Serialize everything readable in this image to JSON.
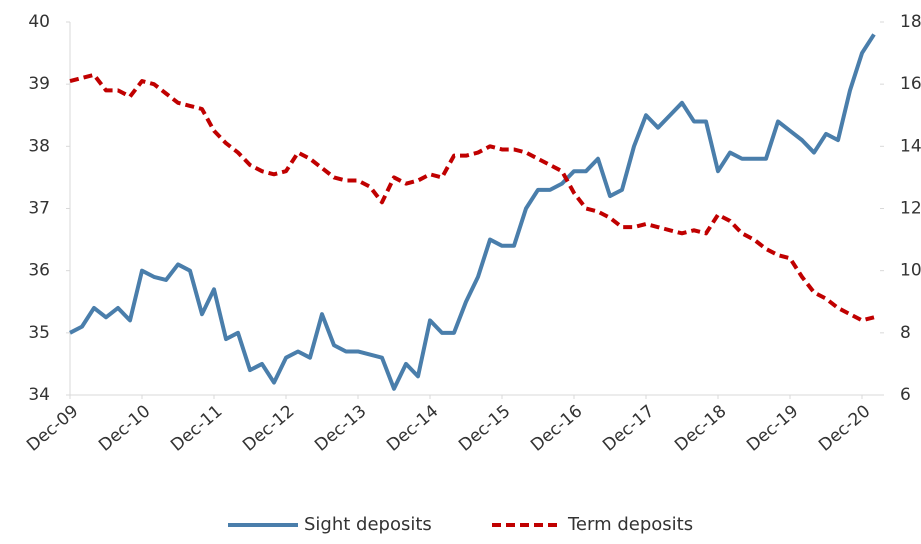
{
  "chart_data": {
    "type": "line",
    "categories": [
      "Dec-09",
      null,
      null,
      null,
      null,
      null,
      "Dec-10",
      null,
      null,
      null,
      null,
      null,
      "Dec-11",
      null,
      null,
      null,
      null,
      null,
      "Dec-12",
      null,
      null,
      null,
      null,
      null,
      "Dec-13",
      null,
      null,
      null,
      null,
      null,
      "Dec-14",
      null,
      null,
      null,
      null,
      null,
      "Dec-15",
      null,
      null,
      null,
      null,
      null,
      "Dec-16",
      null,
      null,
      null,
      null,
      null,
      "Dec-17",
      null,
      null,
      null,
      null,
      null,
      "Dec-18",
      null,
      null,
      null,
      null,
      null,
      "Dec-19",
      null,
      null,
      null,
      null,
      null,
      "Dec-20",
      null
    ],
    "series": [
      {
        "name": "Sight deposits",
        "color": "#4a7eab",
        "dash": false,
        "values": [
          35.0,
          35.1,
          35.4,
          35.25,
          35.4,
          35.2,
          36.0,
          35.9,
          35.85,
          36.1,
          36.0,
          35.3,
          35.7,
          34.9,
          35.0,
          34.4,
          34.5,
          34.2,
          34.6,
          34.7,
          34.6,
          35.3,
          34.8,
          34.7,
          34.7,
          34.65,
          34.6,
          34.1,
          34.5,
          34.3,
          35.2,
          35.0,
          35.0,
          35.5,
          35.9,
          36.5,
          36.4,
          36.4,
          37.0,
          37.3,
          37.3,
          37.4,
          37.6,
          37.6,
          37.8,
          37.2,
          37.3,
          38.0,
          38.5,
          38.3,
          38.5,
          38.7,
          38.4,
          38.4,
          37.6,
          37.9,
          37.8,
          37.8,
          37.8,
          38.4,
          38.25,
          38.1,
          37.9,
          38.2,
          38.1,
          38.9,
          39.5,
          39.8
        ]
      },
      {
        "name": "Term deposits",
        "color": "#c00000",
        "dash": true,
        "axis": "y2",
        "values": [
          16.1,
          16.2,
          16.3,
          15.8,
          15.8,
          15.6,
          16.1,
          16.0,
          15.7,
          15.4,
          15.3,
          15.2,
          14.5,
          14.1,
          13.8,
          13.4,
          13.2,
          13.1,
          13.2,
          13.8,
          13.6,
          13.3,
          13.0,
          12.9,
          12.9,
          12.7,
          12.2,
          13.0,
          12.8,
          12.9,
          13.1,
          13.0,
          13.7,
          13.7,
          13.8,
          14.0,
          13.9,
          13.9,
          13.8,
          13.6,
          13.4,
          13.2,
          12.5,
          12.0,
          11.9,
          11.7,
          11.4,
          11.4,
          11.5,
          11.4,
          11.3,
          11.2,
          11.3,
          11.2,
          11.8,
          11.6,
          11.2,
          11.0,
          10.7,
          10.5,
          10.4,
          9.8,
          9.3,
          9.1,
          8.8,
          8.6,
          8.4,
          8.5
        ]
      }
    ],
    "ylim": [
      34,
      40
    ],
    "yticks": [
      34,
      35,
      36,
      37,
      38,
      39,
      40
    ],
    "y2lim": [
      6,
      18
    ],
    "y2ticks": [
      6,
      8,
      10,
      12,
      14,
      16,
      18
    ],
    "legend": "bottom"
  }
}
